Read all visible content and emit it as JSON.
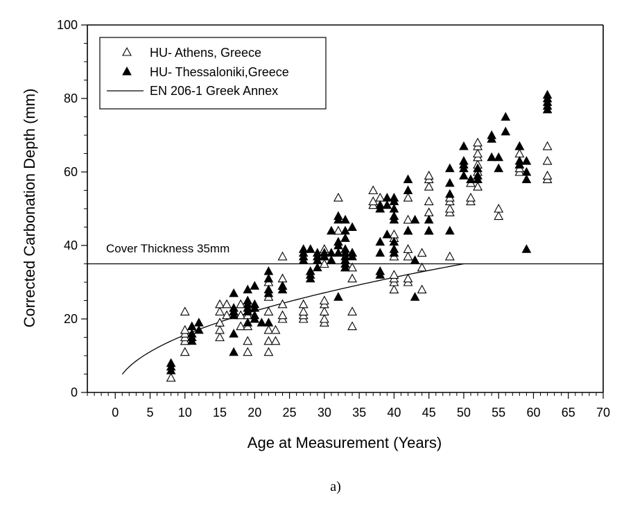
{
  "chart_data": {
    "type": "scatter",
    "title": "",
    "xlabel": "Age at Measurement (Years)",
    "ylabel": "Corrected Carbonation Depth (mm)",
    "xlim": [
      -4,
      70
    ],
    "ylim": [
      0,
      100
    ],
    "xticks": [
      0,
      5,
      10,
      15,
      20,
      25,
      30,
      35,
      40,
      45,
      50,
      55,
      60,
      65,
      70
    ],
    "yticks": [
      0,
      20,
      40,
      60,
      80,
      100
    ],
    "legend_position": "top-left",
    "annotation": "Cover Thickness 35mm",
    "caption": "a)",
    "series": [
      {
        "name": "HU- Athens, Greece",
        "marker": "open-triangle",
        "points": [
          [
            8,
            4
          ],
          [
            10,
            11
          ],
          [
            10,
            14
          ],
          [
            10,
            15
          ],
          [
            10,
            16
          ],
          [
            10,
            17
          ],
          [
            10,
            22
          ],
          [
            15,
            15
          ],
          [
            15,
            17
          ],
          [
            15,
            19
          ],
          [
            15,
            22
          ],
          [
            15,
            24
          ],
          [
            16,
            21
          ],
          [
            16,
            24
          ],
          [
            17,
            22
          ],
          [
            18,
            18
          ],
          [
            18,
            21
          ],
          [
            18,
            24
          ],
          [
            19,
            11
          ],
          [
            19,
            14
          ],
          [
            19,
            18
          ],
          [
            19,
            21
          ],
          [
            22,
            11
          ],
          [
            22,
            14
          ],
          [
            22,
            17
          ],
          [
            22,
            22
          ],
          [
            22,
            26
          ],
          [
            22,
            30
          ],
          [
            23,
            14
          ],
          [
            23,
            17
          ],
          [
            24,
            20
          ],
          [
            24,
            21
          ],
          [
            24,
            24
          ],
          [
            24,
            29
          ],
          [
            24,
            31
          ],
          [
            24,
            37
          ],
          [
            27,
            20
          ],
          [
            27,
            21
          ],
          [
            27,
            22
          ],
          [
            27,
            24
          ],
          [
            30,
            19
          ],
          [
            30,
            20
          ],
          [
            30,
            22
          ],
          [
            30,
            24
          ],
          [
            30,
            25
          ],
          [
            30,
            35
          ],
          [
            30,
            37
          ],
          [
            30,
            39
          ],
          [
            32,
            44
          ],
          [
            32,
            53
          ],
          [
            33,
            34
          ],
          [
            33,
            36
          ],
          [
            34,
            18
          ],
          [
            34,
            22
          ],
          [
            34,
            31
          ],
          [
            34,
            34
          ],
          [
            34,
            38
          ],
          [
            37,
            51
          ],
          [
            37,
            52
          ],
          [
            37,
            55
          ],
          [
            38,
            50
          ],
          [
            38,
            53
          ],
          [
            40,
            28
          ],
          [
            40,
            30
          ],
          [
            40,
            31
          ],
          [
            40,
            32
          ],
          [
            40,
            37
          ],
          [
            40,
            42
          ],
          [
            40,
            43
          ],
          [
            42,
            30
          ],
          [
            42,
            31
          ],
          [
            42,
            37
          ],
          [
            42,
            39
          ],
          [
            42,
            44
          ],
          [
            42,
            47
          ],
          [
            42,
            53
          ],
          [
            44,
            28
          ],
          [
            44,
            34
          ],
          [
            44,
            38
          ],
          [
            45,
            44
          ],
          [
            45,
            49
          ],
          [
            45,
            52
          ],
          [
            45,
            56
          ],
          [
            45,
            58
          ],
          [
            45,
            59
          ],
          [
            48,
            37
          ],
          [
            48,
            49
          ],
          [
            48,
            50
          ],
          [
            48,
            52
          ],
          [
            48,
            53
          ],
          [
            51,
            52
          ],
          [
            51,
            53
          ],
          [
            51,
            57
          ],
          [
            52,
            56
          ],
          [
            52,
            60
          ],
          [
            52,
            62
          ],
          [
            52,
            64
          ],
          [
            52,
            65
          ],
          [
            52,
            67
          ],
          [
            52,
            68
          ],
          [
            55,
            48
          ],
          [
            55,
            50
          ],
          [
            58,
            60
          ],
          [
            58,
            61
          ],
          [
            58,
            62
          ],
          [
            58,
            65
          ],
          [
            58,
            67
          ],
          [
            62,
            58
          ],
          [
            62,
            59
          ],
          [
            62,
            63
          ],
          [
            62,
            67
          ]
        ]
      },
      {
        "name": "HU- Thessaloniki,Greece",
        "marker": "filled-triangle",
        "points": [
          [
            8,
            6
          ],
          [
            8,
            7
          ],
          [
            8,
            8
          ],
          [
            11,
            14
          ],
          [
            11,
            15
          ],
          [
            11,
            16
          ],
          [
            11,
            18
          ],
          [
            12,
            17
          ],
          [
            12,
            19
          ],
          [
            17,
            11
          ],
          [
            17,
            16
          ],
          [
            17,
            21
          ],
          [
            17,
            22
          ],
          [
            17,
            23
          ],
          [
            17,
            27
          ],
          [
            19,
            19
          ],
          [
            19,
            22
          ],
          [
            19,
            23
          ],
          [
            19,
            24
          ],
          [
            19,
            25
          ],
          [
            19,
            28
          ],
          [
            20,
            20
          ],
          [
            20,
            21
          ],
          [
            20,
            23
          ],
          [
            20,
            24
          ],
          [
            20,
            29
          ],
          [
            21,
            19
          ],
          [
            22,
            19
          ],
          [
            22,
            27
          ],
          [
            22,
            28
          ],
          [
            22,
            31
          ],
          [
            22,
            33
          ],
          [
            24,
            28
          ],
          [
            24,
            29
          ],
          [
            27,
            36
          ],
          [
            27,
            37
          ],
          [
            27,
            38
          ],
          [
            27,
            39
          ],
          [
            28,
            31
          ],
          [
            28,
            32
          ],
          [
            28,
            33
          ],
          [
            28,
            39
          ],
          [
            29,
            34
          ],
          [
            29,
            36
          ],
          [
            29,
            37
          ],
          [
            29,
            38
          ],
          [
            30,
            37
          ],
          [
            30,
            38
          ],
          [
            31,
            36
          ],
          [
            31,
            38
          ],
          [
            31,
            44
          ],
          [
            32,
            26
          ],
          [
            32,
            38
          ],
          [
            32,
            40
          ],
          [
            32,
            41
          ],
          [
            32,
            47
          ],
          [
            32,
            48
          ],
          [
            33,
            34
          ],
          [
            33,
            35
          ],
          [
            33,
            36
          ],
          [
            33,
            37
          ],
          [
            33,
            38
          ],
          [
            33,
            39
          ],
          [
            33,
            42
          ],
          [
            33,
            44
          ],
          [
            33,
            47
          ],
          [
            34,
            37
          ],
          [
            34,
            38
          ],
          [
            34,
            45
          ],
          [
            38,
            32
          ],
          [
            38,
            33
          ],
          [
            38,
            38
          ],
          [
            38,
            41
          ],
          [
            38,
            50
          ],
          [
            38,
            51
          ],
          [
            39,
            43
          ],
          [
            39,
            51
          ],
          [
            39,
            53
          ],
          [
            40,
            38
          ],
          [
            40,
            39
          ],
          [
            40,
            41
          ],
          [
            40,
            47
          ],
          [
            40,
            48
          ],
          [
            40,
            50
          ],
          [
            40,
            52
          ],
          [
            40,
            53
          ],
          [
            42,
            44
          ],
          [
            42,
            55
          ],
          [
            42,
            58
          ],
          [
            43,
            26
          ],
          [
            43,
            36
          ],
          [
            43,
            47
          ],
          [
            45,
            44
          ],
          [
            45,
            47
          ],
          [
            48,
            44
          ],
          [
            48,
            54
          ],
          [
            48,
            57
          ],
          [
            48,
            61
          ],
          [
            50,
            59
          ],
          [
            50,
            61
          ],
          [
            50,
            62
          ],
          [
            50,
            63
          ],
          [
            50,
            67
          ],
          [
            51,
            58
          ],
          [
            52,
            58
          ],
          [
            52,
            59
          ],
          [
            52,
            61
          ],
          [
            54,
            64
          ],
          [
            54,
            69
          ],
          [
            54,
            70
          ],
          [
            55,
            61
          ],
          [
            55,
            64
          ],
          [
            56,
            71
          ],
          [
            56,
            75
          ],
          [
            58,
            62
          ],
          [
            58,
            63
          ],
          [
            58,
            67
          ],
          [
            59,
            39
          ],
          [
            59,
            58
          ],
          [
            59,
            60
          ],
          [
            59,
            63
          ],
          [
            62,
            77
          ],
          [
            62,
            78
          ],
          [
            62,
            79
          ],
          [
            62,
            80
          ],
          [
            62,
            81
          ]
        ]
      },
      {
        "name": "EN 206-1 Greek Annex",
        "marker": "line",
        "curve": {
          "x_start": 1,
          "x_end": 50,
          "coefficient": 4.95,
          "power": 0.5
        },
        "plateau": {
          "y": 35,
          "x_start": -4,
          "x_end": 70
        }
      }
    ]
  }
}
